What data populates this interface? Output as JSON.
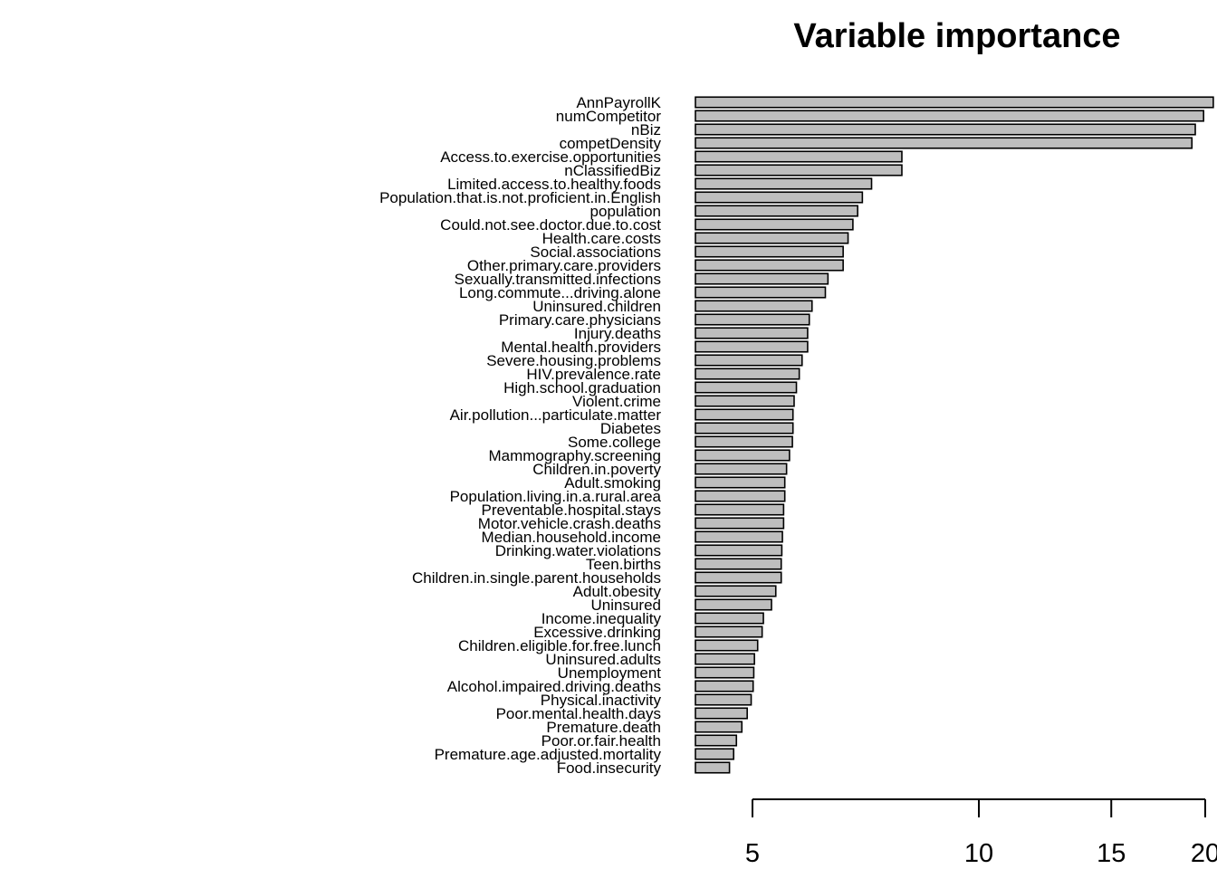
{
  "chart_data": {
    "type": "bar",
    "orientation": "horizontal",
    "title": "Variable importance",
    "xlabel": "",
    "ylabel": "",
    "x_scale": "log",
    "xlim": [
      3.5,
      20
    ],
    "x_ticks": [
      5,
      10,
      15,
      20
    ],
    "x_tick_labels": [
      "5",
      "10",
      "15",
      "20"
    ],
    "bar_color": "#bebebe",
    "categories": [
      "AnnPayrollK",
      "numCompetitor",
      "nBiz",
      "competDensity",
      "Access.to.exercise.opportunities",
      "nClassifiedBiz",
      "Limited.access.to.healthy.foods",
      "Population.that.is.not.proficient.in.English",
      "population",
      "Could.not.see.doctor.due.to.cost",
      "Health.care.costs",
      "Social.associations",
      "Other.primary.care.providers",
      "Sexually.transmitted.infections",
      "Long.commute...driving.alone",
      "Uninsured.children",
      "Primary.care.physicians",
      "Injury.deaths",
      "Mental.health.providers",
      "Severe.housing.problems",
      "HIV.prevalence.rate",
      "High.school.graduation",
      "Violent.crime",
      "Air.pollution...particulate.matter",
      "Diabetes",
      "Some.college",
      "Mammography.screening",
      "Children.in.poverty",
      "Adult.smoking",
      "Population.living.in.a.rural.area",
      "Preventable.hospital.stays",
      "Motor.vehicle.crash.deaths",
      "Median.household.income",
      "Drinking.water.violations",
      "Teen.births",
      "Children.in.single.parent.households",
      "Adult.obesity",
      "Uninsured",
      "Income.inequality",
      "Excessive.drinking",
      "Children.eligible.for.free.lunch",
      "Uninsured.adults",
      "Unemployment",
      "Alcohol.impaired.driving.deaths",
      "Physical.inactivity",
      "Poor.mental.health.days",
      "Premature.death",
      "Poor.or.fair.health",
      "Premature.age.adjusted.mortality",
      "Food.insecurity"
    ],
    "values": [
      20.5,
      19.9,
      19.4,
      19.2,
      7.9,
      7.9,
      7.2,
      7.0,
      6.9,
      6.8,
      6.7,
      6.6,
      6.6,
      6.3,
      6.25,
      6.0,
      5.95,
      5.92,
      5.92,
      5.82,
      5.77,
      5.72,
      5.68,
      5.66,
      5.66,
      5.65,
      5.6,
      5.55,
      5.52,
      5.52,
      5.5,
      5.5,
      5.48,
      5.47,
      5.46,
      5.46,
      5.37,
      5.3,
      5.17,
      5.15,
      5.08,
      5.03,
      5.02,
      5.01,
      4.98,
      4.92,
      4.84,
      4.76,
      4.72,
      4.66
    ]
  }
}
